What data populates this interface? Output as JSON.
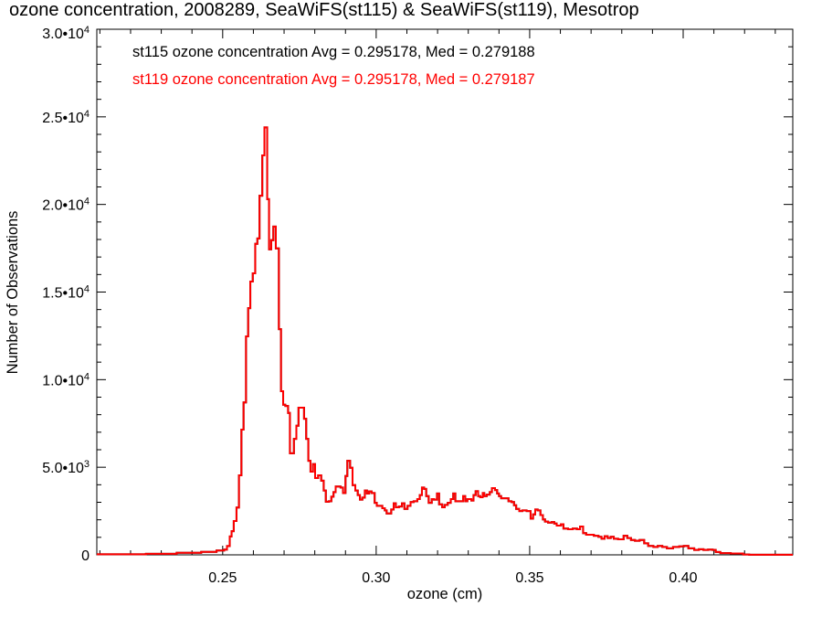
{
  "chart_data": {
    "type": "histogram",
    "title": "ozone concentration, 2008289, SeaWiFS(st115) & SeaWiFS(st119), Mesotrop",
    "xlabel": "ozone (cm)",
    "ylabel": "Number of Observations",
    "xlim": [
      0.209,
      0.4357
    ],
    "ylim": [
      0,
      30000
    ],
    "grid": false,
    "legend_placement": "top-left",
    "x_ticks": [
      {
        "value": 0.25,
        "label": "0.25"
      },
      {
        "value": 0.3,
        "label": "0.30"
      },
      {
        "value": 0.35,
        "label": "0.35"
      },
      {
        "value": 0.4,
        "label": "0.40"
      }
    ],
    "x_minor_step": 0.01,
    "y_ticks": [
      {
        "value": 0,
        "mantissa": "0",
        "exp": ""
      },
      {
        "value": 5000,
        "mantissa": "5.0•10",
        "exp": "3"
      },
      {
        "value": 10000,
        "mantissa": "1.0•10",
        "exp": "4"
      },
      {
        "value": 15000,
        "mantissa": "1.5•10",
        "exp": "4"
      },
      {
        "value": 20000,
        "mantissa": "2.0•10",
        "exp": "4"
      },
      {
        "value": 25000,
        "mantissa": "2.5•10",
        "exp": "4"
      },
      {
        "value": 30000,
        "mantissa": "3.0•10",
        "exp": "4"
      }
    ],
    "y_minor_step": 1000,
    "series": [
      {
        "name": "st115",
        "color": "#000000",
        "legend": "st115 ozone concentration Avg = 0.295178, Med = 0.279188"
      },
      {
        "name": "st119",
        "color": "#ff0000",
        "legend": "st119 ozone concentration Avg = 0.295178, Med = 0.279187"
      }
    ],
    "steps_note_units": "[bin start (cm), count]",
    "steps": [
      [
        0.209,
        30
      ],
      [
        0.225,
        60
      ],
      [
        0.235,
        120
      ],
      [
        0.243,
        170
      ],
      [
        0.248,
        250
      ],
      [
        0.2505,
        300
      ],
      [
        0.2514,
        500
      ],
      [
        0.2523,
        1050
      ],
      [
        0.2529,
        1350
      ],
      [
        0.2536,
        1930
      ],
      [
        0.2545,
        2700
      ],
      [
        0.2553,
        4540
      ],
      [
        0.2561,
        7150
      ],
      [
        0.2568,
        8700
      ],
      [
        0.2576,
        12470
      ],
      [
        0.2583,
        14080
      ],
      [
        0.259,
        15600
      ],
      [
        0.2598,
        16070
      ],
      [
        0.2606,
        17750
      ],
      [
        0.2613,
        18060
      ],
      [
        0.262,
        20500
      ],
      [
        0.2629,
        22800
      ],
      [
        0.2636,
        24400
      ],
      [
        0.2645,
        20300
      ],
      [
        0.2651,
        17440
      ],
      [
        0.2658,
        17960
      ],
      [
        0.2665,
        18740
      ],
      [
        0.2673,
        17490
      ],
      [
        0.2683,
        12880
      ],
      [
        0.269,
        9340
      ],
      [
        0.2697,
        8570
      ],
      [
        0.2704,
        8500
      ],
      [
        0.2713,
        8100
      ],
      [
        0.2719,
        5800
      ],
      [
        0.2732,
        6620
      ],
      [
        0.274,
        7370
      ],
      [
        0.2747,
        8400
      ],
      [
        0.2765,
        7770
      ],
      [
        0.2772,
        6620
      ],
      [
        0.2779,
        5370
      ],
      [
        0.2786,
        4750
      ],
      [
        0.2794,
        5180
      ],
      [
        0.2801,
        4380
      ],
      [
        0.2811,
        4540
      ],
      [
        0.2821,
        4230
      ],
      [
        0.2829,
        3670
      ],
      [
        0.2836,
        3030
      ],
      [
        0.2846,
        3060
      ],
      [
        0.2854,
        3320
      ],
      [
        0.2861,
        3580
      ],
      [
        0.2868,
        3900
      ],
      [
        0.2884,
        3840
      ],
      [
        0.2892,
        3530
      ],
      [
        0.29,
        4500
      ],
      [
        0.2906,
        5370
      ],
      [
        0.2915,
        4970
      ],
      [
        0.2923,
        3980
      ],
      [
        0.2932,
        3670
      ],
      [
        0.294,
        3410
      ],
      [
        0.2947,
        3150
      ],
      [
        0.2955,
        3270
      ],
      [
        0.2963,
        3670
      ],
      [
        0.297,
        3500
      ],
      [
        0.2977,
        3620
      ],
      [
        0.2985,
        3530
      ],
      [
        0.2995,
        2970
      ],
      [
        0.3002,
        2800
      ],
      [
        0.302,
        2660
      ],
      [
        0.3028,
        2540
      ],
      [
        0.3034,
        2360
      ],
      [
        0.3049,
        2590
      ],
      [
        0.3057,
        2940
      ],
      [
        0.3064,
        2710
      ],
      [
        0.3074,
        2760
      ],
      [
        0.3084,
        2940
      ],
      [
        0.3092,
        2620
      ],
      [
        0.3102,
        2800
      ],
      [
        0.3112,
        3010
      ],
      [
        0.3122,
        3060
      ],
      [
        0.3134,
        3180
      ],
      [
        0.3142,
        3410
      ],
      [
        0.3149,
        3840
      ],
      [
        0.3156,
        3760
      ],
      [
        0.3163,
        3350
      ],
      [
        0.3171,
        2970
      ],
      [
        0.3181,
        3180
      ],
      [
        0.3188,
        3150
      ],
      [
        0.3198,
        3500
      ],
      [
        0.3205,
        2880
      ],
      [
        0.3215,
        2710
      ],
      [
        0.3223,
        2850
      ],
      [
        0.3233,
        2970
      ],
      [
        0.3243,
        3180
      ],
      [
        0.3251,
        3500
      ],
      [
        0.3258,
        3060
      ],
      [
        0.3283,
        3350
      ],
      [
        0.329,
        3060
      ],
      [
        0.3297,
        3180
      ],
      [
        0.331,
        3100
      ],
      [
        0.3317,
        3410
      ],
      [
        0.3324,
        3630
      ],
      [
        0.3332,
        3350
      ],
      [
        0.3339,
        3290
      ],
      [
        0.3347,
        3530
      ],
      [
        0.3352,
        3350
      ],
      [
        0.336,
        3440
      ],
      [
        0.337,
        3580
      ],
      [
        0.3377,
        3810
      ],
      [
        0.3387,
        3700
      ],
      [
        0.3394,
        3500
      ],
      [
        0.34,
        3350
      ],
      [
        0.3407,
        3230
      ],
      [
        0.3431,
        3060
      ],
      [
        0.3441,
        3010
      ],
      [
        0.3449,
        2830
      ],
      [
        0.3456,
        2620
      ],
      [
        0.3466,
        2500
      ],
      [
        0.3476,
        2540
      ],
      [
        0.349,
        2500
      ],
      [
        0.3503,
        2070
      ],
      [
        0.3511,
        2310
      ],
      [
        0.3518,
        2590
      ],
      [
        0.3526,
        2540
      ],
      [
        0.3535,
        2270
      ],
      [
        0.3543,
        2020
      ],
      [
        0.355,
        1900
      ],
      [
        0.356,
        1840
      ],
      [
        0.3572,
        1870
      ],
      [
        0.358,
        1790
      ],
      [
        0.3588,
        1670
      ],
      [
        0.3602,
        1750
      ],
      [
        0.361,
        1500
      ],
      [
        0.3625,
        1460
      ],
      [
        0.364,
        1500
      ],
      [
        0.3654,
        1460
      ],
      [
        0.3664,
        1620
      ],
      [
        0.3674,
        1240
      ],
      [
        0.3684,
        1150
      ],
      [
        0.3709,
        1090
      ],
      [
        0.3724,
        1030
      ],
      [
        0.3734,
        920
      ],
      [
        0.3744,
        1060
      ],
      [
        0.3754,
        960
      ],
      [
        0.3764,
        1030
      ],
      [
        0.3774,
        920
      ],
      [
        0.3788,
        890
      ],
      [
        0.3806,
        1090
      ],
      [
        0.3818,
        960
      ],
      [
        0.383,
        850
      ],
      [
        0.3843,
        800
      ],
      [
        0.3858,
        850
      ],
      [
        0.3873,
        660
      ],
      [
        0.3886,
        510
      ],
      [
        0.3903,
        450
      ],
      [
        0.3917,
        510
      ],
      [
        0.3932,
        450
      ],
      [
        0.3947,
        370
      ],
      [
        0.3967,
        450
      ],
      [
        0.3987,
        480
      ],
      [
        0.4002,
        510
      ],
      [
        0.4017,
        370
      ],
      [
        0.4036,
        280
      ],
      [
        0.4051,
        320
      ],
      [
        0.4066,
        280
      ],
      [
        0.4081,
        300
      ],
      [
        0.4096,
        280
      ],
      [
        0.4106,
        160
      ],
      [
        0.4121,
        100
      ],
      [
        0.4155,
        80
      ],
      [
        0.4195,
        20
      ],
      [
        0.4215,
        5
      ]
    ]
  }
}
